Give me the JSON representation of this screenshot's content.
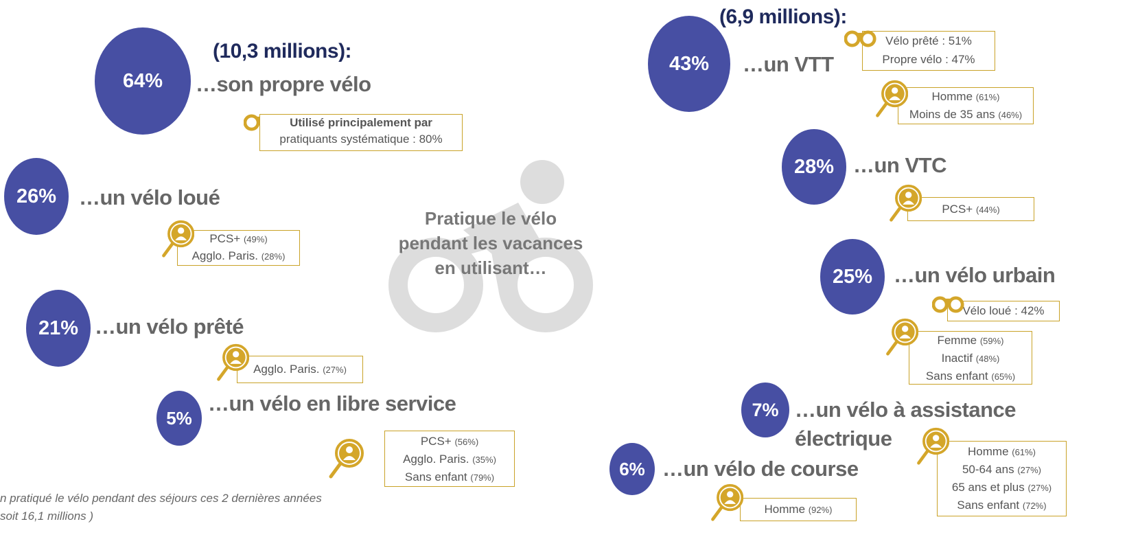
{
  "left": {
    "heading": "(10,3 millions):",
    "items": [
      {
        "percent": "64%",
        "label": "…son propre vélo",
        "usage": [
          "Utilisé principalement par",
          "pratiquants systématique : 80%"
        ]
      },
      {
        "percent": "26%",
        "label": "…un vélo loué",
        "profile": [
          {
            "label": "PCS+",
            "share": "(49%)"
          },
          {
            "label": "Agglo. Paris.",
            "share": "(28%)"
          }
        ]
      },
      {
        "percent": "21%",
        "label": "…un vélo prêté",
        "profile": [
          {
            "label": "Agglo. Paris.",
            "share": "(27%)"
          }
        ]
      },
      {
        "percent": "5%",
        "label": "…un vélo en libre service",
        "profile": [
          {
            "label": "PCS+",
            "share": "(56%)"
          },
          {
            "label": "Agglo. Paris.",
            "share": "(35%)"
          },
          {
            "label": "Sans enfant",
            "share": "(79%)"
          }
        ]
      }
    ]
  },
  "center": {
    "lines": [
      "Pratique le vélo",
      "pendant les vacances",
      "en utilisant…"
    ]
  },
  "right": {
    "heading": "(6,9 millions):",
    "items": [
      {
        "percent": "43%",
        "label": "…un VTT",
        "usage": [
          "Vélo prêté : 51%",
          "Propre vélo  : 47%"
        ],
        "profile": [
          {
            "label": "Homme",
            "share": "(61%)"
          },
          {
            "label": "Moins de 35 ans",
            "share": "(46%)"
          }
        ]
      },
      {
        "percent": "28%",
        "label": "…un VTC",
        "profile": [
          {
            "label": "PCS+",
            "share": "(44%)"
          }
        ]
      },
      {
        "percent": "25%",
        "label": "…un vélo urbain",
        "usage": [
          "Vélo loué : 42%"
        ],
        "profile": [
          {
            "label": "Femme",
            "share": "(59%)"
          },
          {
            "label": "Inactif",
            "share": "(48%)"
          },
          {
            "label": "Sans enfant",
            "share": "(65%)"
          }
        ]
      },
      {
        "percent": "7%",
        "label": "…un vélo à assistance électrique",
        "profile": [
          {
            "label": "Homme",
            "share": "(61%)"
          },
          {
            "label": "50-64 ans",
            "share": "(27%)"
          },
          {
            "label": "65 ans et plus",
            "share": "(27%)"
          },
          {
            "label": "Sans enfant",
            "share": "(72%)"
          }
        ]
      },
      {
        "percent": "6%",
        "label": "…un vélo de course",
        "profile": [
          {
            "label": "Homme",
            "share": "(92%)"
          }
        ]
      }
    ]
  },
  "footnote": [
    "n pratiqué le vélo pendant des séjours ces 2 dernières années",
    "soit 16,1 millions )"
  ]
}
